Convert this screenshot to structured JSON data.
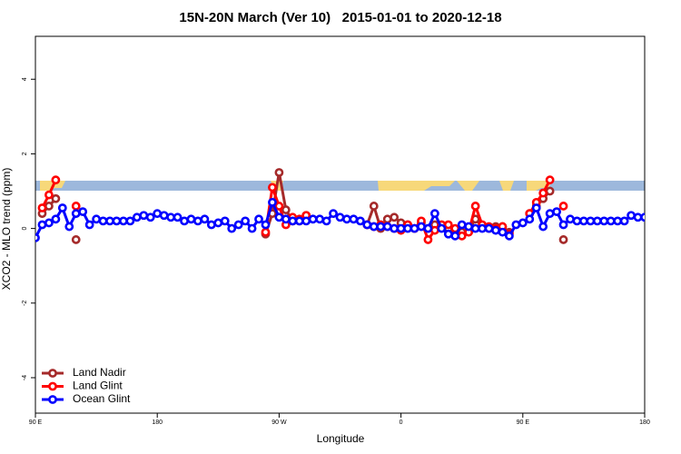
{
  "chart_data": {
    "type": "line",
    "title": "15N-20N March (Ver 10)   2015-01-01 to 2020-12-18",
    "x_label": "Longitude",
    "y_label": "XCO2 - MLO trend (ppm)",
    "x": [
      90,
      95,
      100,
      105,
      110,
      115,
      120,
      125,
      130,
      135,
      140,
      145,
      150,
      155,
      160,
      165,
      170,
      175,
      180,
      185,
      190,
      195,
      200,
      205,
      210,
      215,
      220,
      225,
      230,
      235,
      240,
      245,
      250,
      255,
      260,
      265,
      270,
      275,
      280,
      285,
      290,
      295,
      300,
      305,
      310,
      315,
      320,
      325,
      330,
      335,
      340,
      345,
      350,
      355,
      360,
      365,
      370,
      375,
      380,
      385,
      390,
      395,
      400,
      405,
      410,
      415,
      420,
      425,
      430,
      435,
      440,
      445,
      450,
      455,
      460,
      465,
      470,
      475,
      480,
      485,
      490,
      495,
      500,
      505,
      510,
      515,
      520,
      525,
      530,
      535,
      540
    ],
    "series": [
      {
        "name": "Land Nadir",
        "color": "#a52a2a",
        "values": [
          null,
          0.4,
          0.6,
          0.8,
          null,
          null,
          -0.3,
          null,
          null,
          null,
          null,
          null,
          null,
          null,
          null,
          null,
          null,
          null,
          null,
          null,
          null,
          null,
          null,
          null,
          null,
          null,
          null,
          null,
          null,
          null,
          null,
          null,
          null,
          null,
          -0.15,
          0.4,
          1.5,
          0.5,
          0.2,
          0.2,
          0.35,
          null,
          null,
          null,
          null,
          null,
          null,
          null,
          null,
          0.1,
          0.6,
          0.0,
          0.25,
          0.3,
          0.15,
          0.1,
          0.0,
          0.15,
          0.0,
          0.1,
          0.05,
          0.0,
          -0.05,
          -0.1,
          -0.05,
          0.25,
          0.05,
          0.0,
          0.05,
          0.05,
          -0.1,
          null,
          null,
          0.4,
          0.6,
          0.8,
          1.0,
          null,
          -0.3,
          null,
          null,
          null,
          null,
          null,
          null,
          null,
          null,
          null,
          null,
          null,
          null
        ]
      },
      {
        "name": "Land Glint",
        "color": "#ff0000",
        "values": [
          null,
          0.55,
          0.9,
          1.3,
          null,
          null,
          0.6,
          null,
          null,
          null,
          null,
          null,
          null,
          null,
          null,
          null,
          null,
          null,
          null,
          null,
          null,
          null,
          null,
          null,
          null,
          null,
          null,
          null,
          null,
          null,
          null,
          null,
          null,
          null,
          -0.1,
          1.1,
          0.6,
          0.1,
          0.3,
          0.25,
          0.35,
          null,
          null,
          null,
          null,
          null,
          null,
          null,
          null,
          0.1,
          0.05,
          0.1,
          0.05,
          0.0,
          -0.05,
          0.1,
          0.0,
          0.2,
          -0.3,
          -0.05,
          0.1,
          0.1,
          0.0,
          -0.2,
          -0.1,
          0.6,
          0.1,
          0.05,
          0.0,
          0.05,
          -0.15,
          null,
          null,
          0.4,
          0.7,
          0.95,
          1.3,
          null,
          0.6,
          null,
          null,
          null,
          null,
          null,
          null,
          null,
          null,
          null,
          null,
          null,
          null
        ]
      },
      {
        "name": "Ocean Glint",
        "color": "#0000ff",
        "values": [
          -0.25,
          0.1,
          0.15,
          0.25,
          0.55,
          0.05,
          0.4,
          0.45,
          0.1,
          0.25,
          0.2,
          0.2,
          0.2,
          0.2,
          0.2,
          0.3,
          0.35,
          0.3,
          0.4,
          0.35,
          0.3,
          0.3,
          0.2,
          0.25,
          0.2,
          0.25,
          0.1,
          0.15,
          0.2,
          0.0,
          0.1,
          0.2,
          0.0,
          0.25,
          0.1,
          0.7,
          0.3,
          0.25,
          0.2,
          0.2,
          0.2,
          0.25,
          0.25,
          0.2,
          0.4,
          0.3,
          0.25,
          0.25,
          0.2,
          0.1,
          0.05,
          0.05,
          0.05,
          0.0,
          0.0,
          0.0,
          0.0,
          0.05,
          0.0,
          0.4,
          0.0,
          -0.15,
          -0.2,
          0.1,
          0.05,
          0.0,
          0.0,
          0.0,
          -0.05,
          -0.1,
          -0.2,
          0.1,
          0.15,
          0.25,
          0.55,
          0.05,
          0.4,
          0.45,
          0.1,
          0.25,
          0.2,
          0.2,
          0.2,
          0.2,
          0.2,
          0.2,
          0.2,
          0.2,
          0.35,
          0.3,
          0.3
        ]
      }
    ],
    "xlim": [
      90,
      540
    ],
    "xticks": [
      {
        "value": 90,
        "label": "90 E"
      },
      180,
      {
        "value": 270,
        "label": "90 W"
      },
      {
        "value": 360,
        "label": "0"
      },
      {
        "value": 450,
        "label": "90 E"
      },
      {
        "value": 540,
        "label": "180"
      }
    ],
    "ylim": [
      -4.95,
      5.15
    ],
    "yticks": [
      -4,
      -2,
      0,
      2,
      4
    ],
    "legend": "bottom-left"
  }
}
